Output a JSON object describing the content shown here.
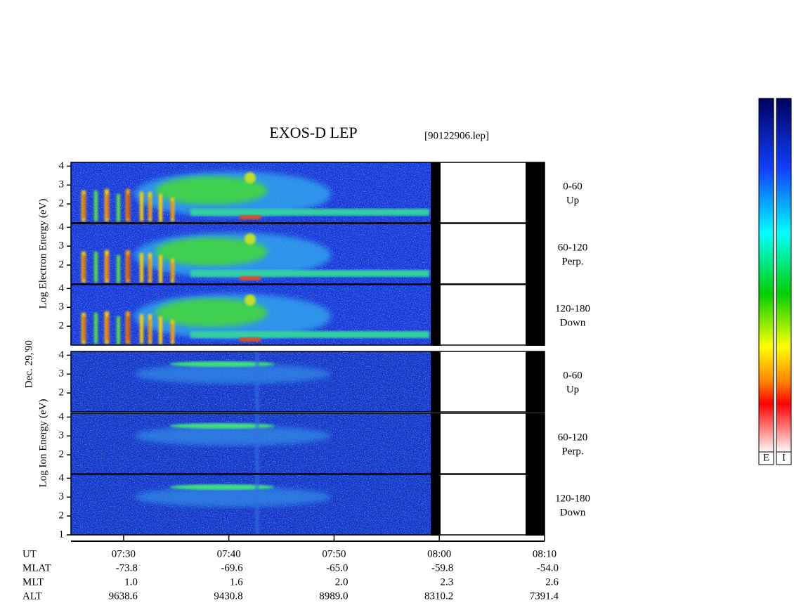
{
  "title": "EXOS-D LEP",
  "file": "[90122906.lep]",
  "date": "Dec. 29,'90",
  "groups": [
    {
      "label": "Log Electron Energy (eV)",
      "panels": [
        {
          "pitch": "0-60",
          "direction": "Up",
          "ylim": [
            1,
            4.2
          ],
          "yticks": [
            2,
            3,
            4
          ]
        },
        {
          "pitch": "60-120",
          "direction": "Perp.",
          "ylim": [
            1,
            4.2
          ],
          "yticks": [
            2,
            3,
            4
          ]
        },
        {
          "pitch": "120-180",
          "direction": "Down",
          "ylim": [
            1,
            4.2
          ],
          "yticks": [
            2,
            3,
            4
          ]
        }
      ]
    },
    {
      "label": "Log Ion Energy (eV)",
      "panels": [
        {
          "pitch": "0-60",
          "direction": "Up",
          "ylim": [
            1,
            4.2
          ],
          "yticks": [
            2,
            3,
            4
          ]
        },
        {
          "pitch": "60-120",
          "direction": "Perp.",
          "ylim": [
            1,
            4.2
          ],
          "yticks": [
            2,
            3,
            4
          ]
        },
        {
          "pitch": "120-180",
          "direction": "Down",
          "ylim": [
            1,
            4.2
          ],
          "yticks": [
            1,
            2,
            3,
            4
          ]
        }
      ]
    }
  ],
  "time_axis": {
    "name": "UT",
    "xlim": [
      "07:25",
      "08:10"
    ],
    "xticks": [
      "07:30",
      "07:40",
      "07:50",
      "08:00",
      "08:10"
    ]
  },
  "ephemeris": [
    {
      "name": "MLAT",
      "values": [
        "-73.8",
        "-69.6",
        "-65.0",
        "-59.8",
        "-54.0"
      ]
    },
    {
      "name": "MLT",
      "values": [
        "1.0",
        "1.6",
        "2.0",
        "2.3",
        "2.6"
      ]
    },
    {
      "name": "ALT",
      "values": [
        "9638.6",
        "9430.8",
        "8989.0",
        "8310.2",
        "7391.4"
      ]
    }
  ],
  "colorbars": [
    "E",
    "I"
  ]
}
